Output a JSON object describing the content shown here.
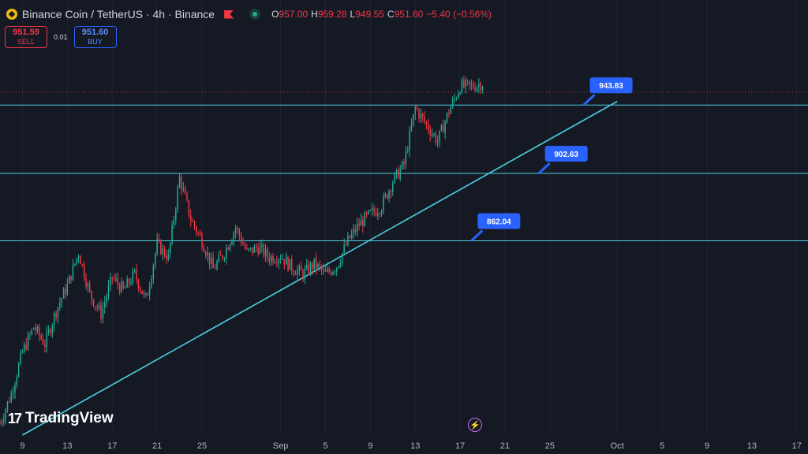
{
  "header": {
    "title": "Binance Coin / TetherUS · 4h · Binance",
    "ohlc": [
      {
        "k": "O",
        "v": "957.00"
      },
      {
        "k": "H",
        "v": "959.28"
      },
      {
        "k": "L",
        "v": "949.55"
      },
      {
        "k": "C",
        "v": "951.60"
      },
      {
        "k": "",
        "v": "−5.40 (−0.56%)"
      }
    ]
  },
  "trade": {
    "sell_price": "951.59",
    "sell_label": "SELL",
    "spread": "0.01",
    "buy_price": "951.60",
    "buy_label": "BUY"
  },
  "branding": {
    "logo_text": "TradingView",
    "logo_mark": "17"
  },
  "icons": {
    "symbol": "binance-coin-icon",
    "flag": "flag-icon",
    "status": "market-status-icon",
    "replay": "lightning-icon"
  },
  "colors": {
    "background": "#151924",
    "up": "#22ab94",
    "down": "#f23645",
    "level": "#4dd0e1",
    "trendline": "#4dd0e1",
    "label_bg": "#2962ff",
    "axis_text": "#b2b5be",
    "grid": "#1f2330"
  },
  "chart_data": {
    "type": "candlestick",
    "symbol": "BNBUSDT",
    "interval": "4h",
    "yrange": [
      745,
      990
    ],
    "xrange": [
      "2025-08-07",
      "2025-10-18"
    ],
    "x_ticks": [
      "9",
      "13",
      "17",
      "21",
      "25",
      "Sep",
      "5",
      "9",
      "13",
      "17",
      "21",
      "25",
      "Oct",
      "5",
      "9",
      "13",
      "17"
    ],
    "x_tick_dates": [
      "2025-08-09",
      "2025-08-13",
      "2025-08-17",
      "2025-08-21",
      "2025-08-25",
      "2025-09-01",
      "2025-09-05",
      "2025-09-09",
      "2025-09-13",
      "2025-09-17",
      "2025-09-21",
      "2025-09-25",
      "2025-10-01",
      "2025-10-05",
      "2025-10-09",
      "2025-10-13",
      "2025-10-17"
    ],
    "current_price": 951.6,
    "levels": [
      {
        "value": 943.83,
        "label": "943.83",
        "label_date": "2025-09-28"
      },
      {
        "value": 902.63,
        "label": "902.63",
        "label_date": "2025-09-24"
      },
      {
        "value": 862.04,
        "label": "862.04",
        "label_date": "2025-09-18"
      }
    ],
    "trendline": {
      "start": [
        "2025-08-09",
        745
      ],
      "end": [
        "2025-10-01",
        946
      ]
    },
    "path": [
      [
        "2025-08-07",
        752
      ],
      [
        "2025-08-08",
        770
      ],
      [
        "2025-08-09",
        795
      ],
      [
        "2025-08-10",
        810
      ],
      [
        "2025-08-11",
        800
      ],
      [
        "2025-08-12",
        820
      ],
      [
        "2025-08-13",
        835
      ],
      [
        "2025-08-14",
        855
      ],
      [
        "2025-08-15",
        830
      ],
      [
        "2025-08-16",
        818
      ],
      [
        "2025-08-17",
        840
      ],
      [
        "2025-08-18",
        832
      ],
      [
        "2025-08-19",
        842
      ],
      [
        "2025-08-20",
        826
      ],
      [
        "2025-08-21",
        860
      ],
      [
        "2025-08-22",
        852
      ],
      [
        "2025-08-23",
        900
      ],
      [
        "2025-08-24",
        875
      ],
      [
        "2025-08-25",
        862
      ],
      [
        "2025-08-26",
        845
      ],
      [
        "2025-08-27",
        855
      ],
      [
        "2025-08-28",
        870
      ],
      [
        "2025-08-29",
        855
      ],
      [
        "2025-08-30",
        858
      ],
      [
        "2025-08-31",
        852
      ],
      [
        "2025-09-01",
        853
      ],
      [
        "2025-09-02",
        846
      ],
      [
        "2025-09-03",
        842
      ],
      [
        "2025-09-04",
        848
      ],
      [
        "2025-09-05",
        842
      ],
      [
        "2025-09-06",
        847
      ],
      [
        "2025-09-07",
        862
      ],
      [
        "2025-09-08",
        872
      ],
      [
        "2025-09-09",
        878
      ],
      [
        "2025-09-10",
        883
      ],
      [
        "2025-09-11",
        898
      ],
      [
        "2025-09-12",
        908
      ],
      [
        "2025-09-13",
        942
      ],
      [
        "2025-09-14",
        932
      ],
      [
        "2025-09-15",
        922
      ],
      [
        "2025-09-16",
        940
      ],
      [
        "2025-09-17",
        955
      ],
      [
        "2025-09-18",
        955
      ],
      [
        "2025-09-19",
        957
      ]
    ]
  }
}
